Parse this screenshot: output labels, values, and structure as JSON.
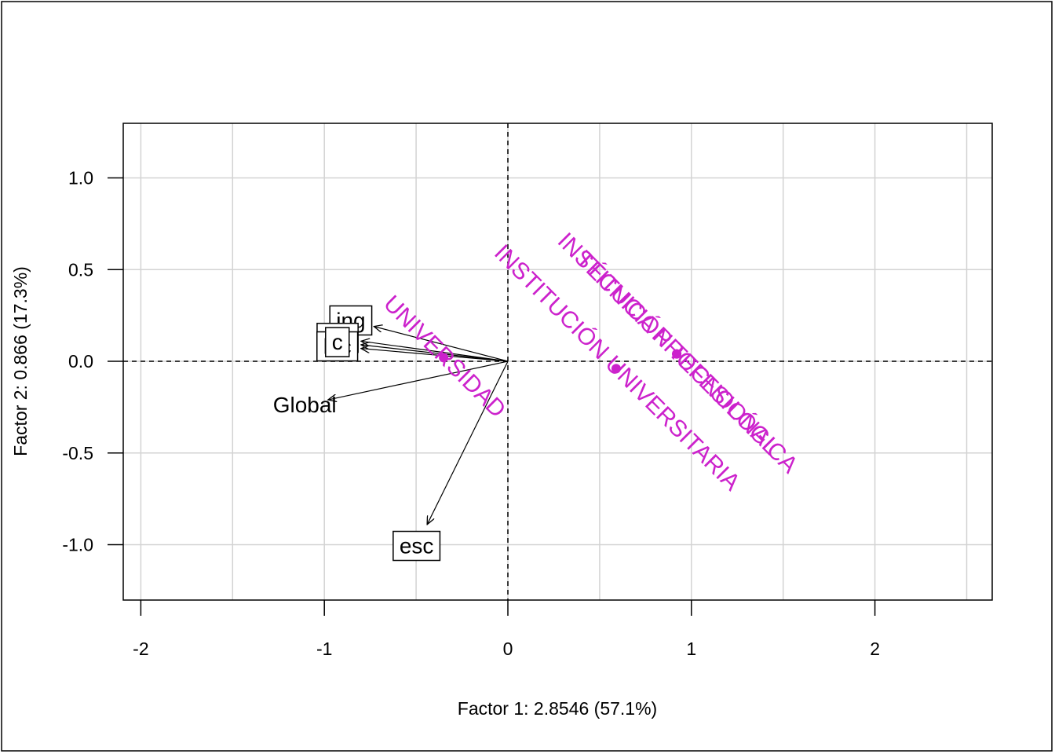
{
  "chart_data": {
    "type": "scatter",
    "subtype": "factor-map-biplot",
    "title": "",
    "xlabel": "Factor 1: 2.8546 (57.1%)",
    "ylabel": "Factor 2: 0.866 (17.3%)",
    "xlim": [
      -2.1,
      2.6
    ],
    "ylim": [
      -1.3,
      1.3
    ],
    "x_ticks": [
      -2,
      -1,
      0,
      1,
      2
    ],
    "x_tick_labels": [
      "-2",
      "-1",
      "0",
      "1",
      "2"
    ],
    "y_ticks": [
      1.0,
      0.5,
      0.0,
      -0.5,
      -1.0
    ],
    "y_tick_labels": [
      "1.0",
      "0.5",
      "0.0",
      "-0.5",
      "-1.0"
    ],
    "grid": true,
    "reference_lines": [
      "x=0 dashed",
      "y=0 dashed"
    ],
    "colors": {
      "category": "#cc22cc",
      "vector": "#000000",
      "grid": "#d3d3d3"
    },
    "variables": [
      {
        "label": "ing",
        "x": -0.73,
        "y": 0.19,
        "boxed": true
      },
      {
        "label": "cla",
        "x": -0.8,
        "y": 0.11,
        "boxed": true
      },
      {
        "label": "lec",
        "x": -0.8,
        "y": 0.07,
        "boxed": true
      },
      {
        "label": "c",
        "x": -0.8,
        "y": 0.09,
        "boxed": true
      },
      {
        "label": "Global",
        "x": -0.98,
        "y": -0.21,
        "boxed": false
      },
      {
        "label": "esc",
        "x": -0.44,
        "y": -0.89,
        "boxed": true
      }
    ],
    "categories": [
      {
        "label": "UNIVERSIDAD",
        "x": -0.35,
        "y": 0.02
      },
      {
        "label": "INSTITUCIÓN UNIVERSITARIA",
        "x": 0.59,
        "y": -0.04
      },
      {
        "label": "INSTITUCIÓN TECNOLÓGICA",
        "x": 0.92,
        "y": 0.04
      },
      {
        "label": "TÉCNICA PROFESIONAL",
        "x": 0.92,
        "y": 0.04
      }
    ]
  }
}
